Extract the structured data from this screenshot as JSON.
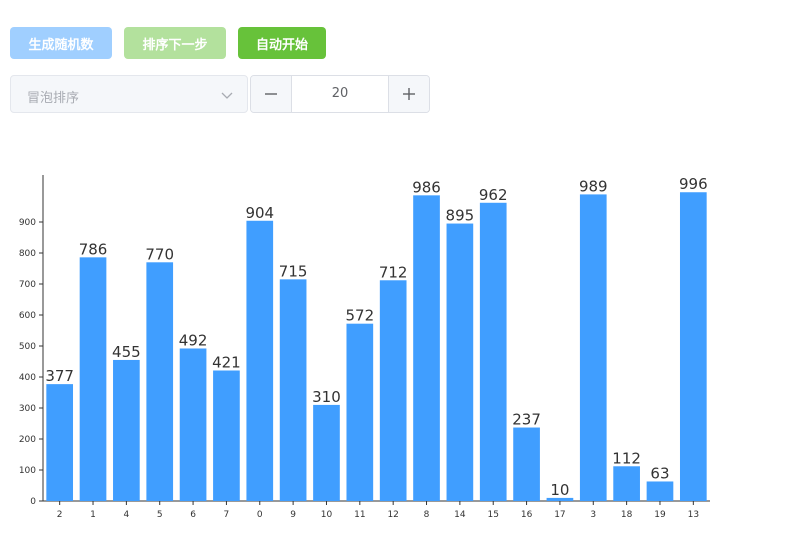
{
  "controls": {
    "generate_label": "生成随机数",
    "step_label": "排序下一步",
    "auto_label": "自动开始",
    "algorithm_value": "冒泡排序",
    "count_value": "20"
  },
  "colors": {
    "bar": "#409eff",
    "generate_btn": "#a0cfff",
    "step_btn": "#b3e19d",
    "auto_btn": "#67c23a"
  },
  "icons": {
    "select_arrow": "chevron-down-icon",
    "decrement": "minus-icon",
    "increment": "plus-icon"
  },
  "chart_data": {
    "type": "bar",
    "categories": [
      "2",
      "1",
      "4",
      "5",
      "6",
      "7",
      "0",
      "9",
      "10",
      "11",
      "12",
      "8",
      "14",
      "15",
      "16",
      "17",
      "3",
      "18",
      "19",
      "13"
    ],
    "values": [
      377,
      786,
      455,
      770,
      492,
      421,
      904,
      715,
      310,
      572,
      712,
      986,
      895,
      962,
      237,
      10,
      989,
      112,
      63,
      996
    ],
    "yticks": [
      0,
      100,
      200,
      300,
      400,
      500,
      600,
      700,
      800,
      900
    ],
    "ylim": [
      0,
      1000
    ],
    "grid": false,
    "legend": "none"
  }
}
